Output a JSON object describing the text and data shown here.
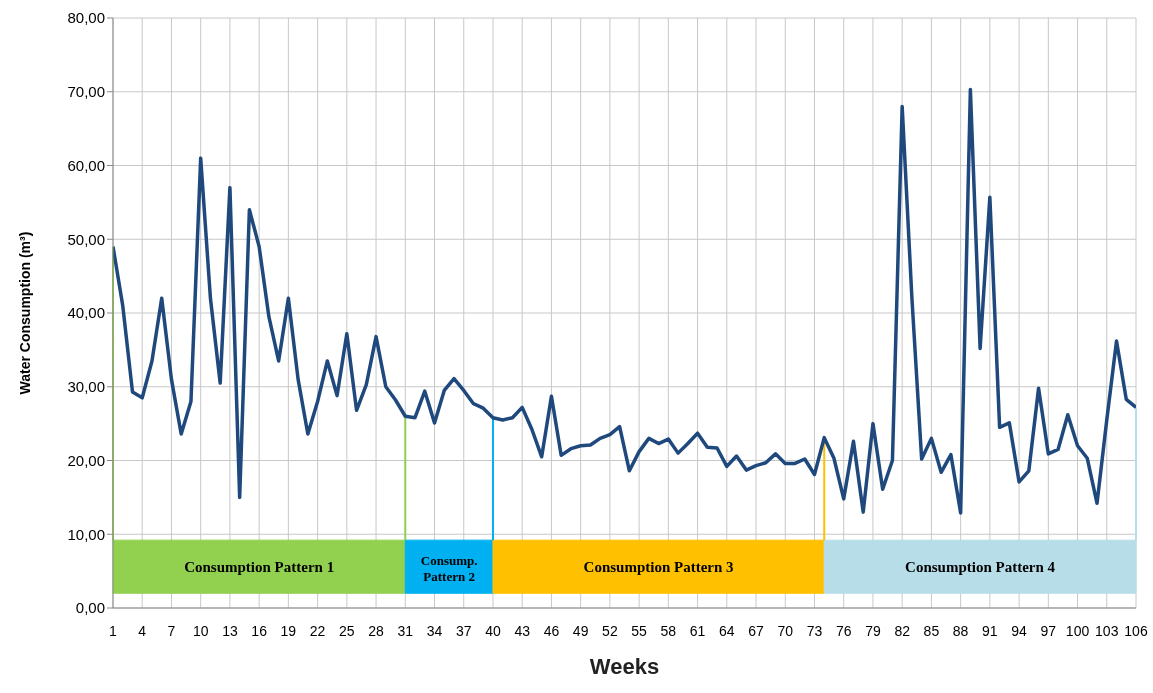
{
  "chart_data": {
    "type": "line",
    "xlabel": "Weeks",
    "ylabel": "Water Consumption  (m³)",
    "x": [
      1,
      2,
      3,
      4,
      5,
      6,
      7,
      8,
      9,
      10,
      11,
      12,
      13,
      14,
      15,
      16,
      17,
      18,
      19,
      20,
      21,
      22,
      23,
      24,
      25,
      26,
      27,
      28,
      29,
      30,
      31,
      32,
      33,
      34,
      35,
      36,
      37,
      38,
      39,
      40,
      41,
      42,
      43,
      44,
      45,
      46,
      47,
      48,
      49,
      50,
      51,
      52,
      53,
      54,
      55,
      56,
      57,
      58,
      59,
      60,
      61,
      62,
      63,
      64,
      65,
      66,
      67,
      68,
      69,
      70,
      71,
      72,
      73,
      74,
      75,
      76,
      77,
      78,
      79,
      80,
      81,
      82,
      83,
      84,
      85,
      86,
      87,
      88,
      89,
      90,
      91,
      92,
      93,
      94,
      95,
      96,
      97,
      98,
      99,
      100,
      101,
      102,
      103,
      104,
      105,
      106
    ],
    "series": [
      {
        "color": "#1f497d",
        "values": [
          49,
          41,
          29.3,
          28.5,
          33.5,
          42,
          31,
          23.6,
          28,
          61,
          42,
          30.5,
          57,
          15,
          54,
          49,
          39.5,
          33.5,
          42,
          31,
          23.6,
          28,
          33.5,
          28.8,
          37.2,
          26.8,
          30.3,
          36.8,
          30,
          28.2,
          26,
          25.8,
          29.4,
          25.1,
          29.5,
          31.1,
          29.5,
          27.7,
          27.1,
          25.8,
          25.5,
          25.8,
          27.2,
          24.2,
          20.5,
          28.7,
          20.7,
          21.6,
          22,
          22.1,
          23,
          23.5,
          24.6,
          18.6,
          21.2,
          23,
          22.3,
          22.9,
          21,
          22.3,
          23.7,
          21.8,
          21.7,
          19.2,
          20.6,
          18.7,
          19.3,
          19.7,
          20.9,
          19.6,
          19.6,
          20.2,
          18.1,
          23.1,
          20.3,
          14.8,
          22.6,
          13,
          25,
          16.1,
          20,
          68,
          42,
          20.2,
          23,
          18.4,
          20.8,
          12.9,
          70.3,
          35.2,
          55.7,
          24.5,
          25.1,
          17.1,
          18.6,
          29.8,
          20.9,
          21.5,
          26.2,
          22,
          20.3,
          14.2,
          25.5,
          36.2,
          28.3,
          27.2
        ]
      }
    ],
    "xlim": [
      1,
      106
    ],
    "xticks": [
      1,
      4,
      7,
      10,
      13,
      16,
      19,
      22,
      25,
      28,
      31,
      34,
      37,
      40,
      43,
      46,
      49,
      52,
      55,
      58,
      61,
      64,
      67,
      70,
      73,
      76,
      79,
      82,
      85,
      88,
      91,
      94,
      97,
      100,
      103,
      106
    ],
    "ylim": [
      0,
      80
    ],
    "yticks": [
      {
        "value": 0,
        "label": "0,00"
      },
      {
        "value": 10,
        "label": "10,00"
      },
      {
        "value": 20,
        "label": "20,00"
      },
      {
        "value": 30,
        "label": "30,00"
      },
      {
        "value": 40,
        "label": "40,00"
      },
      {
        "value": 50,
        "label": "50,00"
      },
      {
        "value": 60,
        "label": "60,00"
      },
      {
        "value": 70,
        "label": "70,00"
      },
      {
        "value": 80,
        "label": "80,00"
      }
    ],
    "bands": [
      {
        "axis": "x",
        "from": 1,
        "to": 31,
        "label": "Consumption Pattern 1",
        "color": "#92d050"
      },
      {
        "axis": "x",
        "from": 31,
        "to": 40,
        "label": "Consump. Pattern 2",
        "color": "#00b0f0"
      },
      {
        "axis": "x",
        "from": 40,
        "to": 74,
        "label": "Consumption Pattern 3",
        "color": "#ffc000"
      },
      {
        "axis": "x",
        "from": 74,
        "to": 106,
        "label": "Consumption Pattern 4",
        "color": "#b7dde8"
      }
    ],
    "grid": true,
    "marker": "none",
    "line_style": "solid"
  }
}
